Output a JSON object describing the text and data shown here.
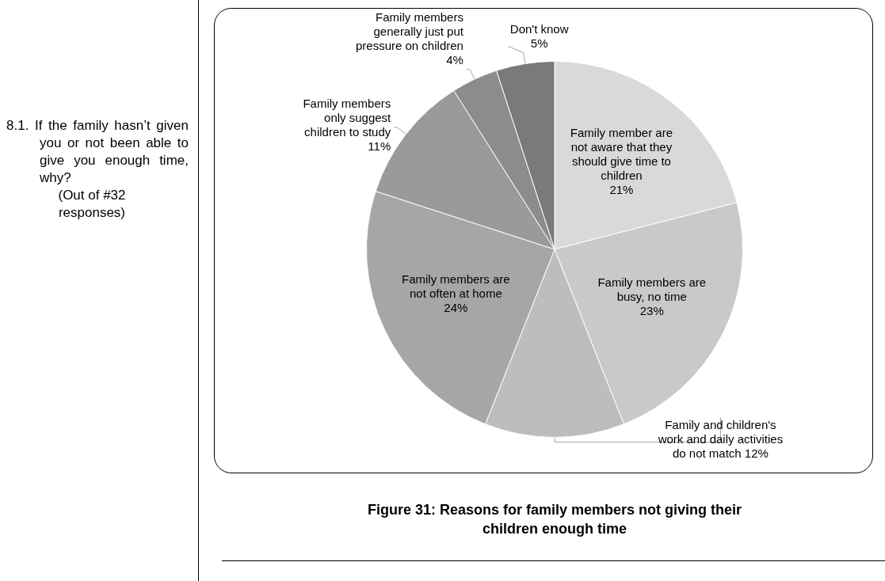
{
  "chart_data": {
    "type": "pie",
    "title": "Figure 31: Reasons for family members not giving their children enough time",
    "categories": [
      "Family member are not aware that they should give time to children",
      "Family members are busy, no time",
      "Family and children's work and daily activities do not match",
      "Family members are not often at home",
      "Family members only suggest children to study",
      "Family members generally just put pressure on children",
      "Don't know"
    ],
    "values": [
      21,
      23,
      12,
      24,
      11,
      4,
      5
    ],
    "colors": [
      "#d9d9d9",
      "#c9c9c9",
      "#bdbdbd",
      "#a6a6a6",
      "#9a9a9a",
      "#8c8c8c",
      "#7a7a7a"
    ],
    "value_labels": [
      "21%",
      "23%",
      "12%",
      "24%",
      "11%",
      "4%",
      "5%"
    ],
    "legend": false,
    "annotations": [
      "8.1. If the family hasn’t given you or not been able to give you enough time, why?",
      "(Out of #32 responses)"
    ]
  }
}
